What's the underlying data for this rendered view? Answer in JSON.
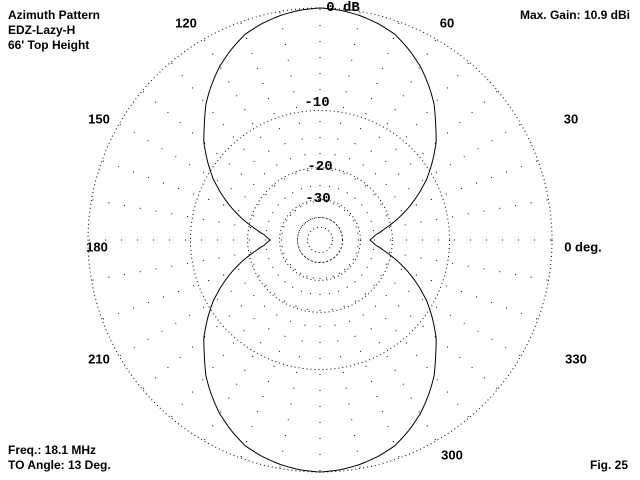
{
  "header": {
    "title": "Azimuth Pattern",
    "antenna": "EDZ-Lazy-H",
    "height": "66' Top Height",
    "max_gain": "Max. Gain: 10.9 dBi"
  },
  "footer": {
    "freq": "Freq.: 18.1 MHz",
    "to_angle": "TO Angle: 13 Deg.",
    "fig": "Fig. 25"
  },
  "chart_data": {
    "type": "polar",
    "title": "Azimuth Pattern",
    "scale": "ARRL log-periodic (0.89 per 2 dB)",
    "rings_db": [
      0,
      -10,
      -20,
      -30,
      -40,
      -50
    ],
    "ring_labels": [
      "0 dB",
      "-10",
      "-20",
      "-30"
    ],
    "spoke_step_deg": 10,
    "grid": true,
    "angle_labels": [
      "0 deg.",
      "30",
      "60",
      "120",
      "150",
      "180",
      "210",
      "300",
      "330"
    ],
    "line_color": "#000000",
    "angles": [
      0,
      5,
      10,
      15,
      20,
      25,
      30,
      35,
      40,
      45,
      50,
      55,
      60,
      65,
      70,
      75,
      80,
      85,
      90,
      95,
      100,
      105,
      110,
      115,
      120,
      125,
      130,
      135,
      140,
      145,
      150,
      155,
      160,
      165,
      170,
      175,
      180,
      185,
      190,
      195,
      200,
      205,
      210,
      215,
      220,
      225,
      230,
      235,
      240,
      245,
      250,
      255,
      260,
      265,
      270,
      275,
      280,
      285,
      290,
      295,
      300,
      305,
      310,
      315,
      320,
      325,
      330,
      335,
      340,
      345,
      350,
      355
    ],
    "values_db": [
      -26.4,
      -24.5,
      -21.5,
      -18.3,
      -15.5,
      -13.0,
      -10.8,
      -9.0,
      -7.3,
      -6.0,
      -4.6,
      -3.5,
      -2.5,
      -1.7,
      -1.0,
      -0.6,
      -0.3,
      -0.1,
      0,
      -0.1,
      -0.3,
      -0.6,
      -1.0,
      -1.7,
      -2.5,
      -3.5,
      -4.6,
      -6.0,
      -7.3,
      -9.0,
      -10.8,
      -13.0,
      -15.5,
      -18.3,
      -21.5,
      -24.5,
      -26.4,
      -24.5,
      -21.5,
      -18.3,
      -15.5,
      -13.0,
      -10.8,
      -9.0,
      -7.3,
      -6.0,
      -4.6,
      -3.5,
      -2.5,
      -1.7,
      -1.0,
      -0.6,
      -0.3,
      -0.1,
      0,
      -0.1,
      -0.3,
      -0.6,
      -1.0,
      -1.7,
      -2.5,
      -3.5,
      -4.6,
      -6.0,
      -7.3,
      -9.0,
      -10.8,
      -13.0,
      -15.5,
      -18.3,
      -21.5,
      -24.5
    ]
  }
}
